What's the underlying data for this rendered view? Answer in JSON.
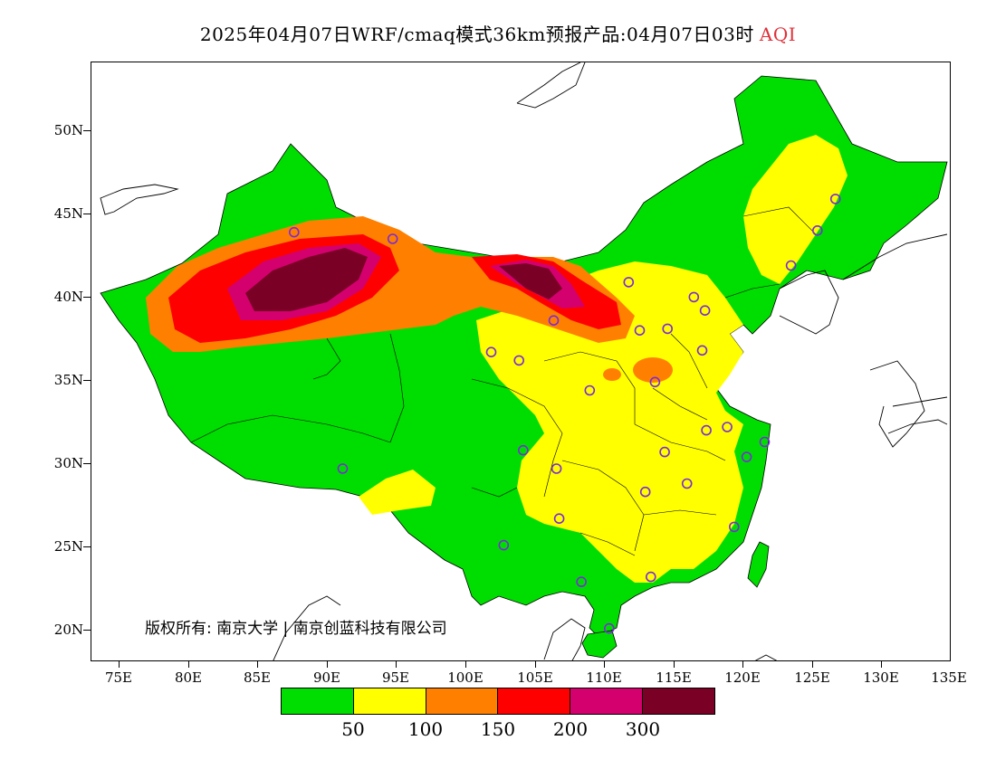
{
  "title": {
    "main": "2025年04月07日WRF/cmaq模式36km预报产品:04月07日03时",
    "variable": "AQI",
    "variable_color": "#e0303a"
  },
  "axes": {
    "y_labels": [
      "50N",
      "45N",
      "40N",
      "35N",
      "30N",
      "25N",
      "20N"
    ],
    "x_labels": [
      "75E",
      "80E",
      "85E",
      "90E",
      "95E",
      "100E",
      "105E",
      "110E",
      "115E",
      "120E",
      "125E",
      "130E",
      "135E"
    ],
    "lon_range": [
      73,
      135
    ],
    "lat_range": [
      18,
      54
    ]
  },
  "copyright": "版权所有: 南京大学 | 南京创蓝科技有限公司",
  "legend": {
    "colors": [
      "#00dd00",
      "#ffff00",
      "#ff8000",
      "#ff0000",
      "#d4006e",
      "#7a0025"
    ],
    "breaks": [
      "50",
      "100",
      "150",
      "200",
      "300"
    ]
  },
  "city_markers": [
    [
      87.6,
      43.8
    ],
    [
      94.7,
      43.4
    ],
    [
      91.1,
      29.6
    ],
    [
      101.8,
      36.6
    ],
    [
      103.8,
      36.1
    ],
    [
      106.3,
      38.5
    ],
    [
      111.7,
      40.8
    ],
    [
      112.5,
      37.9
    ],
    [
      114.5,
      38.0
    ],
    [
      116.4,
      39.9
    ],
    [
      117.2,
      39.1
    ],
    [
      117.0,
      36.7
    ],
    [
      113.6,
      34.8
    ],
    [
      108.9,
      34.3
    ],
    [
      104.1,
      30.7
    ],
    [
      106.5,
      29.6
    ],
    [
      106.7,
      26.6
    ],
    [
      102.7,
      25.0
    ],
    [
      108.3,
      22.8
    ],
    [
      113.3,
      23.1
    ],
    [
      110.3,
      20.0
    ],
    [
      112.9,
      28.2
    ],
    [
      114.3,
      30.6
    ],
    [
      115.9,
      28.7
    ],
    [
      117.3,
      31.9
    ],
    [
      118.8,
      32.1
    ],
    [
      120.2,
      30.3
    ],
    [
      121.5,
      31.2
    ],
    [
      119.3,
      26.1
    ],
    [
      123.4,
      41.8
    ],
    [
      125.3,
      43.9
    ],
    [
      126.6,
      45.8
    ]
  ]
}
